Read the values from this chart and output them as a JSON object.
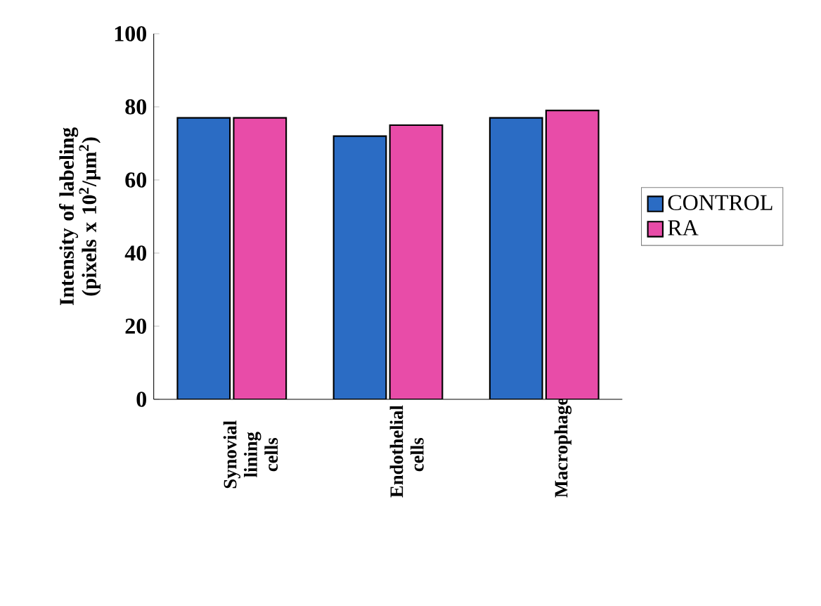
{
  "chart_data": {
    "type": "bar",
    "ylabel": "Intensity of labeling (pixels x 10$^{2}$/µm$^{2}$)",
    "categories": [
      "Synovial lining cells",
      "Endothelial cells",
      "Macrophage"
    ],
    "series": [
      {
        "name": "CONTROL",
        "color": "#2b6cc4",
        "values": [
          77,
          72,
          77
        ]
      },
      {
        "name": "RA",
        "color": "#e84ca8",
        "values": [
          77,
          75,
          79
        ]
      }
    ],
    "ylim": [
      0,
      100
    ],
    "yticks": [
      0,
      20,
      40,
      60,
      80,
      100
    ],
    "grid": false,
    "legend": "right"
  }
}
